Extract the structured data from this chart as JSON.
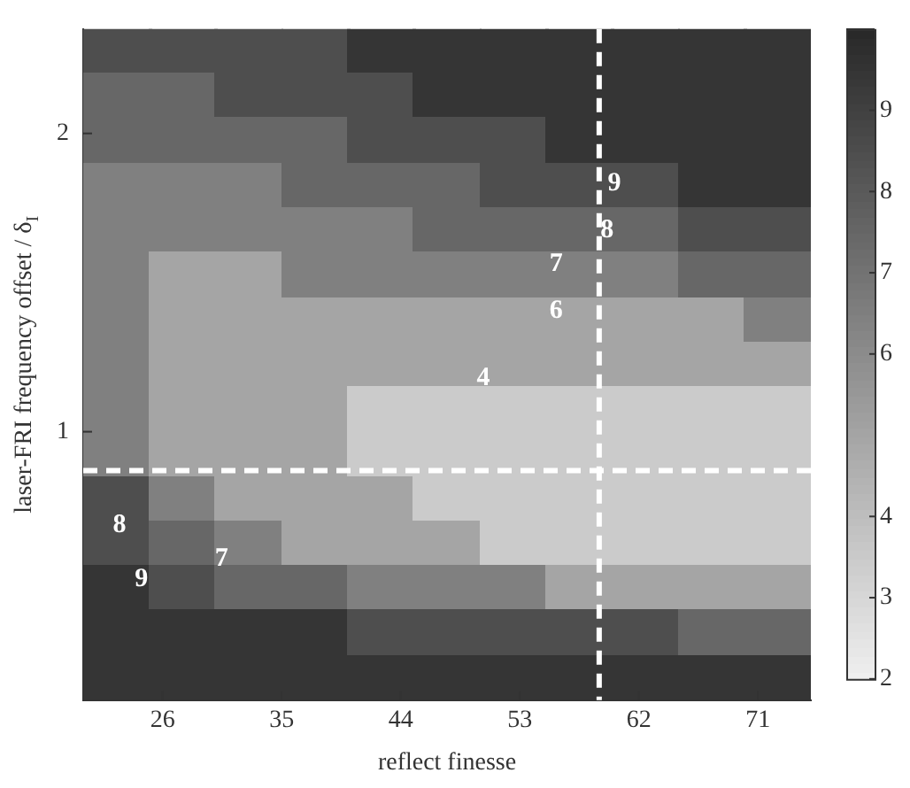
{
  "chart_data": {
    "type": "heatmap",
    "xlabel": "reflect finesse",
    "ylabel": "laser-FRI frequency offset / δ$_{I}$",
    "x": [
      22.5,
      27.5,
      32.5,
      37.5,
      42.5,
      47.5,
      52.5,
      57.5,
      62.5,
      67.5,
      72.5
    ],
    "y": [
      2.275,
      2.125,
      1.975,
      1.825,
      1.675,
      1.525,
      1.375,
      1.225,
      1.075,
      0.925,
      0.775,
      0.625,
      0.475,
      0.325,
      0.175
    ],
    "cells": [
      [
        8.5,
        8.5,
        8.5,
        8.5,
        9.5,
        9.5,
        9.5,
        9.5,
        9.5,
        9.5,
        9.5
      ],
      [
        7.5,
        7.5,
        8.5,
        8.5,
        8.5,
        9.5,
        9.5,
        9.5,
        9.5,
        9.5,
        9.5
      ],
      [
        7.5,
        7.5,
        7.5,
        7.5,
        8.5,
        8.5,
        8.5,
        9.5,
        9.5,
        9.5,
        9.5
      ],
      [
        6.5,
        6.5,
        6.5,
        7.5,
        7.5,
        7.5,
        8.5,
        8.5,
        8.5,
        9.5,
        9.5
      ],
      [
        6.5,
        6.5,
        6.5,
        6.5,
        6.5,
        7.5,
        7.5,
        7.5,
        7.5,
        8.5,
        8.5
      ],
      [
        6.5,
        5,
        5,
        6.5,
        6.5,
        6.5,
        6.5,
        6.5,
        6.5,
        7.5,
        7.5
      ],
      [
        6.5,
        5,
        5,
        5,
        5,
        5,
        5,
        5,
        5,
        5,
        6.5
      ],
      [
        6.5,
        5,
        5,
        5,
        5,
        5,
        5,
        5,
        5,
        5,
        5
      ],
      [
        6.5,
        5,
        5,
        5,
        3.5,
        3.5,
        3.5,
        3.5,
        3.5,
        3.5,
        3.5
      ],
      [
        6.5,
        5,
        5,
        5,
        3.5,
        3.5,
        3.5,
        3.5,
        3.5,
        3.5,
        3.5
      ],
      [
        8.5,
        6.5,
        5,
        5,
        5,
        3.5,
        3.5,
        3.5,
        3.5,
        3.5,
        3.5
      ],
      [
        8.5,
        7.5,
        6.5,
        5,
        5,
        5,
        3.5,
        3.5,
        3.5,
        3.5,
        3.5
      ],
      [
        9.5,
        8.5,
        7.5,
        7.5,
        6.5,
        6.5,
        6.5,
        5,
        5,
        5,
        5
      ],
      [
        9.5,
        9.5,
        9.5,
        9.5,
        8.5,
        8.5,
        8.5,
        8.5,
        8.5,
        7.5,
        7.5
      ],
      [
        9.5,
        9.5,
        9.5,
        9.5,
        9.5,
        9.5,
        9.5,
        9.5,
        9.5,
        9.5,
        9.5
      ]
    ],
    "xlim": [
      20,
      75
    ],
    "xticks": [
      26,
      35,
      44,
      53,
      62,
      71
    ],
    "ylim": [
      0.1,
      2.35
    ],
    "yticks": [
      1,
      2
    ],
    "clim": [
      2,
      10
    ],
    "cticks": [
      2,
      3,
      4,
      6,
      7,
      8,
      9
    ],
    "ref_lines": [
      {
        "axis": "x",
        "value": 59,
        "color": "#ffffff",
        "line_style": "dashed"
      },
      {
        "axis": "y",
        "value": 0.87,
        "color": "#ffffff",
        "line_style": "dashed"
      }
    ],
    "annotations": [
      "9",
      "8",
      "7",
      "6",
      "4",
      "8",
      "9",
      "7"
    ],
    "grid": false
  }
}
